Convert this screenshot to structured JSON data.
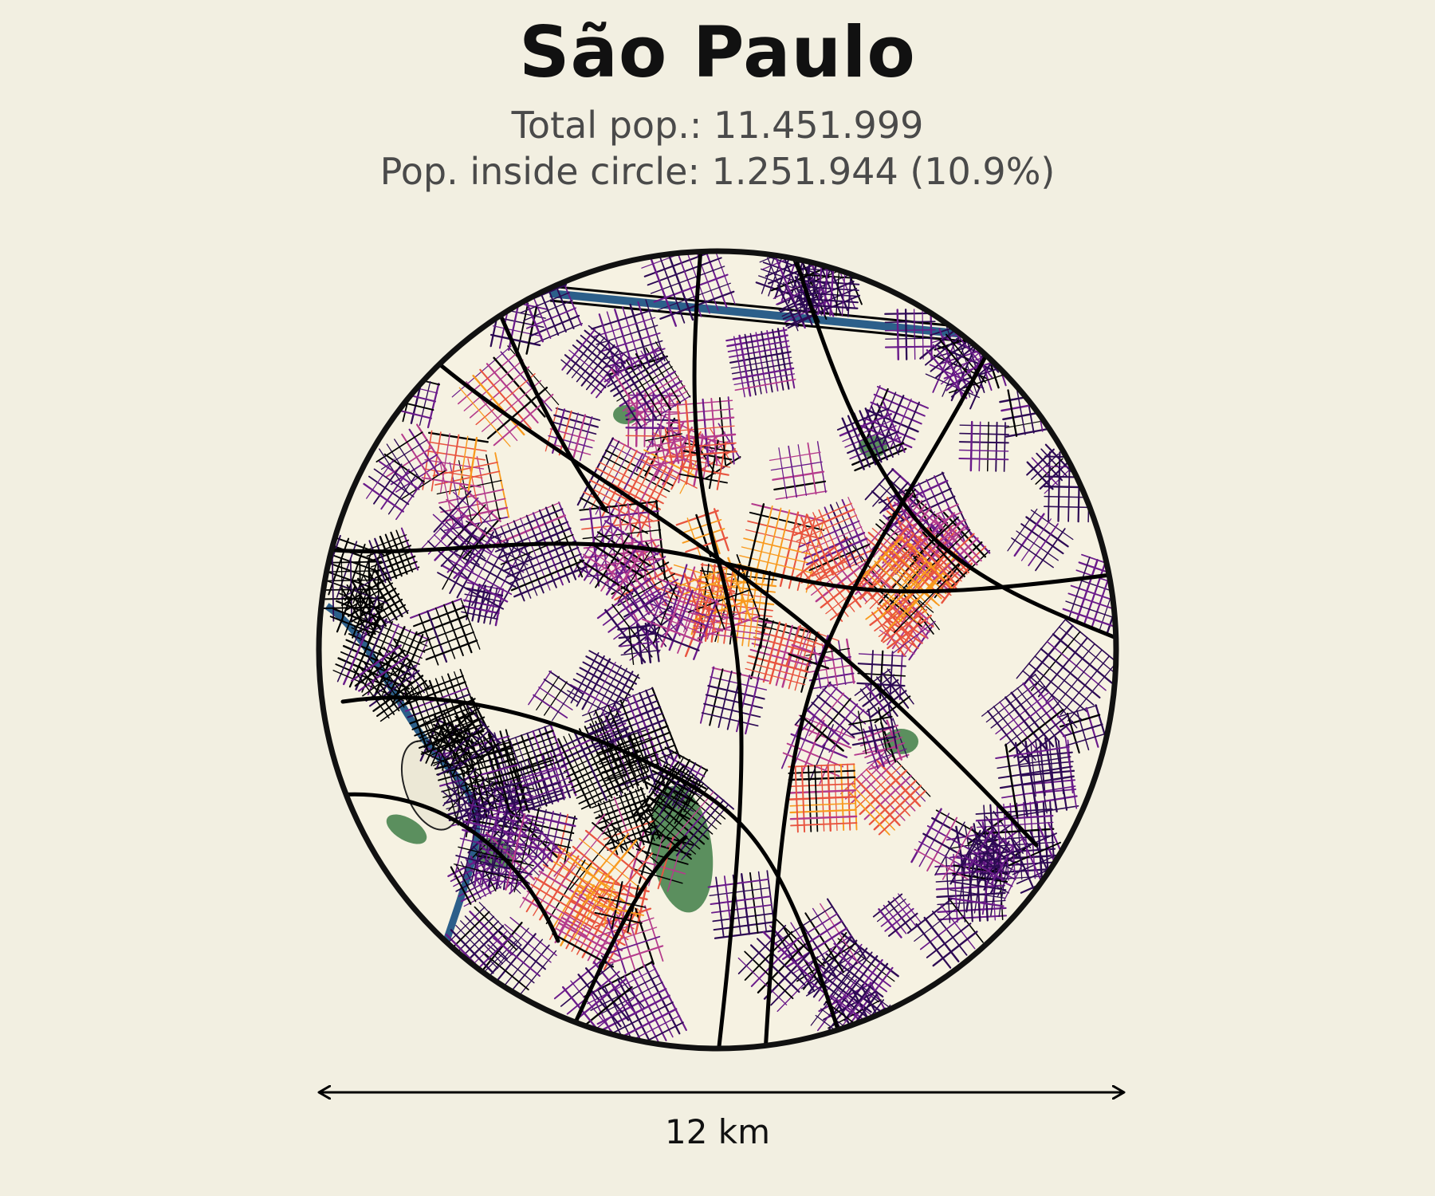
{
  "map": {
    "city": "São Paulo",
    "total_pop_text": "Total pop.: 11.451.999",
    "inside_pop_text": "Pop. inside circle: 1.251.944 (10.9%)",
    "scale_label": "12 km",
    "total_population": 11451999,
    "population_inside_circle": 1251944,
    "share_inside_circle_percent": 10.9,
    "scale_diameter_km": 12
  },
  "colors": {
    "background": "#f2efe1",
    "land": "#f6f2e2",
    "park": "#5b8f5e",
    "water": "#2c5f8a",
    "road_major": "#000000",
    "density_low": "#2d0a54",
    "density_mid_low": "#6a1b8a",
    "density_mid": "#b43b8c",
    "density_mid_high": "#e8543f",
    "density_high": "#f89a1e"
  },
  "icons": {
    "scale_arrow": "double-headed-arrow-icon"
  }
}
